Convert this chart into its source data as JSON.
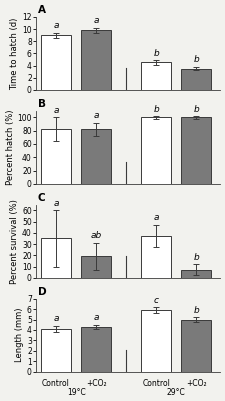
{
  "panels": [
    {
      "label": "A",
      "ylabel": "Time to hatch (d)",
      "ylim": [
        0,
        12
      ],
      "yticks": [
        0,
        2,
        4,
        6,
        8,
        10,
        12
      ],
      "bars": [
        9.0,
        9.8,
        4.5,
        3.5
      ],
      "errors": [
        0.4,
        0.4,
        0.35,
        0.3
      ],
      "sig_labels": [
        "a",
        "a",
        "b",
        "b"
      ],
      "colors": [
        "white",
        "#7a7a7a",
        "white",
        "#7a7a7a"
      ]
    },
    {
      "label": "B",
      "ylabel": "Percent hatch (%)",
      "ylim": [
        0,
        110
      ],
      "yticks": [
        0,
        20,
        40,
        60,
        80,
        100
      ],
      "bars": [
        82,
        82,
        100,
        100
      ],
      "errors": [
        18,
        10,
        2,
        2
      ],
      "sig_labels": [
        "a",
        "a",
        "b",
        "b"
      ],
      "colors": [
        "white",
        "#7a7a7a",
        "white",
        "#7a7a7a"
      ]
    },
    {
      "label": "C",
      "ylabel": "Percent survival (%)",
      "ylim": [
        0,
        65
      ],
      "yticks": [
        0,
        10,
        20,
        30,
        40,
        50,
        60
      ],
      "bars": [
        35,
        19,
        37,
        7
      ],
      "errors": [
        25,
        12,
        10,
        5
      ],
      "sig_labels": [
        "a",
        "ab",
        "a",
        "b"
      ],
      "colors": [
        "white",
        "#7a7a7a",
        "white",
        "#7a7a7a"
      ]
    },
    {
      "label": "D",
      "ylabel": "Length (mm)",
      "ylim": [
        0,
        7
      ],
      "yticks": [
        0,
        1,
        2,
        3,
        4,
        5,
        6,
        7
      ],
      "bars": [
        4.1,
        4.3,
        5.9,
        5.0
      ],
      "errors": [
        0.3,
        0.2,
        0.3,
        0.2
      ],
      "sig_labels": [
        "a",
        "a",
        "c",
        "b"
      ],
      "colors": [
        "white",
        "#7a7a7a",
        "white",
        "#7a7a7a"
      ]
    }
  ],
  "bar_positions": [
    0.5,
    1.5,
    3.0,
    4.0
  ],
  "bar_width": 0.75,
  "xlim": [
    0,
    4.6
  ],
  "bar_edge_color": "#3a3a3a",
  "bar_linewidth": 0.7,
  "error_color": "#3a3a3a",
  "sig_fontsize": 6.5,
  "label_fontsize": 6,
  "tick_fontsize": 5.5,
  "panel_label_fontsize": 7.5,
  "background_color": "#f2f2ee",
  "divider_ymax": 0.3,
  "xlabel_bottom": [
    "Control",
    "+CO₂",
    "Control",
    "+CO₂"
  ],
  "temp_label_19": "19°C",
  "temp_label_29": "29°C"
}
